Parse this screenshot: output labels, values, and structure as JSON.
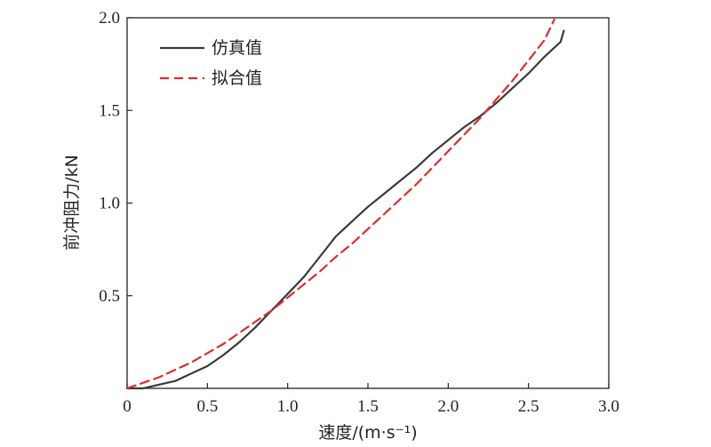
{
  "chart_data": {
    "type": "line",
    "title": "",
    "xlabel": "速度/(m·s⁻¹)",
    "ylabel": "前冲阻力/kN",
    "xlim": [
      0,
      3.0
    ],
    "ylim": [
      0,
      2.0
    ],
    "x_ticks": [
      "0",
      "0.5",
      "1.0",
      "1.5",
      "2.0",
      "2.5",
      "3.0"
    ],
    "y_ticks": [
      "0.5",
      "1.0",
      "1.5",
      "2.0"
    ],
    "x_tick_values": [
      0,
      0.5,
      1.0,
      1.5,
      2.0,
      2.5,
      3.0
    ],
    "y_tick_values": [
      0.5,
      1.0,
      1.5,
      2.0
    ],
    "legend_position": "top-left",
    "grid": false,
    "series": [
      {
        "name": "仿真值",
        "color": "#3a3a3a",
        "style": "solid",
        "x": [
          0,
          0.1,
          0.2,
          0.3,
          0.4,
          0.5,
          0.6,
          0.7,
          0.8,
          0.9,
          1.0,
          1.1,
          1.2,
          1.3,
          1.4,
          1.5,
          1.6,
          1.7,
          1.8,
          1.9,
          2.0,
          2.1,
          2.2,
          2.3,
          2.4,
          2.5,
          2.6,
          2.7,
          2.72
        ],
        "y": [
          0.0,
          0.0,
          0.02,
          0.04,
          0.08,
          0.12,
          0.18,
          0.25,
          0.33,
          0.42,
          0.51,
          0.6,
          0.71,
          0.82,
          0.9,
          0.98,
          1.05,
          1.12,
          1.19,
          1.27,
          1.34,
          1.41,
          1.47,
          1.54,
          1.62,
          1.7,
          1.79,
          1.87,
          1.93
        ]
      },
      {
        "name": "拟合值",
        "color": "#e02a2a",
        "style": "dashed",
        "x": [
          0,
          0.1,
          0.2,
          0.3,
          0.4,
          0.5,
          0.6,
          0.7,
          0.8,
          0.9,
          1.0,
          1.1,
          1.2,
          1.3,
          1.4,
          1.5,
          1.6,
          1.7,
          1.8,
          1.9,
          2.0,
          2.1,
          2.2,
          2.3,
          2.4,
          2.5,
          2.6,
          2.66
        ],
        "y": [
          0.0,
          0.03,
          0.06,
          0.1,
          0.14,
          0.19,
          0.24,
          0.3,
          0.36,
          0.42,
          0.49,
          0.56,
          0.63,
          0.71,
          0.78,
          0.86,
          0.94,
          1.02,
          1.1,
          1.19,
          1.28,
          1.37,
          1.46,
          1.56,
          1.66,
          1.77,
          1.88,
          1.99
        ]
      }
    ]
  }
}
